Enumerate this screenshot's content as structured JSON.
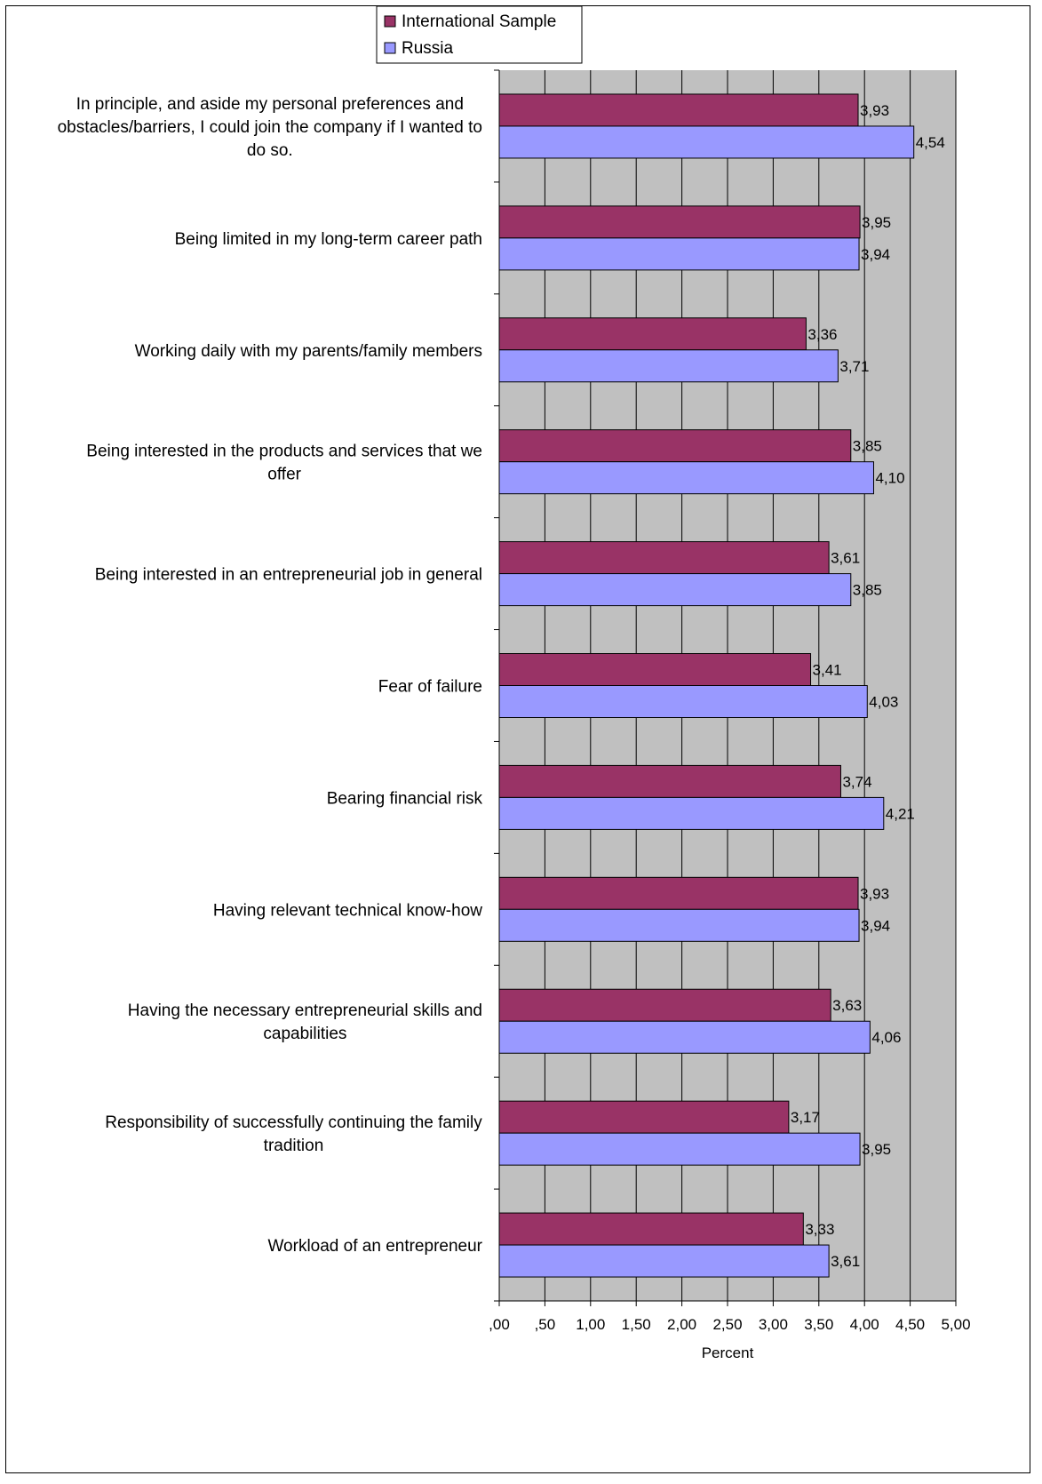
{
  "chart_data": {
    "type": "bar",
    "orientation": "horizontal",
    "categories": [
      "In principle, and aside my personal preferences and obstacles/barriers, I could join the company if I wanted to do so.",
      "Being limited in my long-term career path",
      "Working daily with my parents/family members",
      "Being interested in the products and services that we offer",
      "Being interested in an entrepreneurial job in general",
      "Fear of failure",
      "Bearing financial risk",
      "Having relevant technical know-how",
      "Having the necessary entrepreneurial skills and capabilities",
      "Responsibility of successfully continuing the family tradition",
      "Workload of an entrepreneur"
    ],
    "category_lines": [
      [
        "In principle, and aside my personal preferences and",
        "obstacles/barriers, I could join the company if I wanted to",
        "do so."
      ],
      [
        "Being limited in my long-term career path"
      ],
      [
        "Working daily with my parents/family members"
      ],
      [
        "Being interested in the products and services that we",
        "offer"
      ],
      [
        "Being interested in an entrepreneurial job in general"
      ],
      [
        "Fear of failure"
      ],
      [
        "Bearing financial risk"
      ],
      [
        "Having relevant technical know-how"
      ],
      [
        "Having the necessary entrepreneurial skills and",
        "capabilities"
      ],
      [
        "Responsibility of successfully continuing the family",
        "tradition"
      ],
      [
        "Workload of an entrepreneur"
      ]
    ],
    "series": [
      {
        "name": "International Sample",
        "color": "#993366",
        "values": [
          3.93,
          3.95,
          3.36,
          3.85,
          3.61,
          3.41,
          3.74,
          3.93,
          3.63,
          3.17,
          3.33
        ],
        "labels": [
          "3,93",
          "3,95",
          "3,36",
          "3,85",
          "3,61",
          "3,41",
          "3,74",
          "3,93",
          "3,63",
          "3,17",
          "3,33"
        ]
      },
      {
        "name": "Russia",
        "color": "#9999ff",
        "values": [
          4.54,
          3.94,
          3.71,
          4.1,
          3.85,
          4.03,
          4.21,
          3.94,
          4.06,
          3.95,
          3.61
        ],
        "labels": [
          "4,54",
          "3,94",
          "3,71",
          "4,10",
          "3,85",
          "4,03",
          "4,21",
          "3,94",
          "4,06",
          "3,95",
          "3,61"
        ]
      }
    ],
    "xlim": [
      0,
      5
    ],
    "xticks": [
      ",00",
      ",50",
      "1,00",
      "1,50",
      "2,00",
      "2,50",
      "3,00",
      "3,50",
      "4,00",
      "4,50",
      "5,00"
    ],
    "xlabel": "Percent",
    "plot_background": "#c0c0c0",
    "grid": true,
    "legend_position": "top"
  }
}
